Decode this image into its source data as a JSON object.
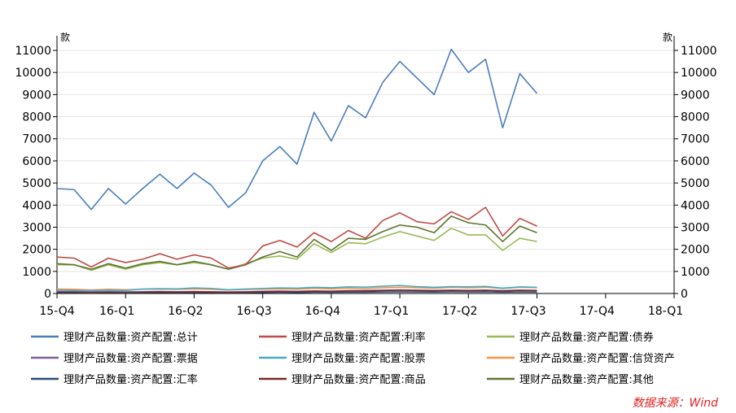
{
  "chart_data": {
    "type": "line",
    "y_unit_left": "款",
    "y_unit_right": "款",
    "ylim": [
      0,
      11000
    ],
    "yticks": [
      0,
      1000,
      2000,
      3000,
      4000,
      5000,
      6000,
      7000,
      8000,
      9000,
      10000,
      11000
    ],
    "ytick_labels": [
      "0",
      "1000",
      "2000",
      "3000",
      "4000",
      "5000",
      "6000",
      "7000",
      "8000",
      "9000",
      "10000",
      "11000"
    ],
    "x_count": 29,
    "x_tick_labels": [
      {
        "label": "15-Q4",
        "index": 0
      },
      {
        "label": "16-Q1",
        "index": 3.5
      },
      {
        "label": "16-Q2",
        "index": 7.5
      },
      {
        "label": "16-Q3",
        "index": 11.5
      },
      {
        "label": "16-Q4",
        "index": 15.5
      },
      {
        "label": "17-Q1",
        "index": 19.5
      },
      {
        "label": "17-Q2",
        "index": 23.5
      },
      {
        "label": "17-Q3",
        "index": 27.5
      },
      {
        "label": "17-Q4",
        "index": 31.5
      },
      {
        "label": "18-Q1",
        "index": 35.5
      }
    ],
    "series": [
      {
        "name": "理财产品数量:资产配置:总计",
        "color": "#4a7ebb",
        "values": [
          4750,
          4700,
          3800,
          4750,
          4050,
          4750,
          5400,
          4750,
          5450,
          4900,
          3900,
          4550,
          6000,
          6650,
          5850,
          8200,
          6900,
          8500,
          7950,
          9550,
          10500,
          9750,
          9000,
          11050,
          10000,
          10600,
          7500,
          9950,
          9050
        ]
      },
      {
        "name": "理财产品数量:资产配置:利率",
        "color": "#be4b48",
        "values": [
          1650,
          1600,
          1200,
          1600,
          1400,
          1550,
          1800,
          1550,
          1750,
          1600,
          1150,
          1300,
          2150,
          2400,
          2100,
          2750,
          2350,
          2850,
          2500,
          3300,
          3650,
          3250,
          3150,
          3700,
          3350,
          3900,
          2600,
          3400,
          3050
        ]
      },
      {
        "name": "理财产品数量:资产配置:债券",
        "color": "#98b954",
        "values": [
          1300,
          1300,
          1050,
          1300,
          1100,
          1300,
          1400,
          1300,
          1400,
          1300,
          1100,
          1350,
          1600,
          1700,
          1550,
          2250,
          1850,
          2300,
          2250,
          2550,
          2800,
          2600,
          2400,
          2950,
          2650,
          2650,
          1950,
          2500,
          2350
        ]
      },
      {
        "name": "理财产品数量:资产配置:票据",
        "color": "#7d60a0",
        "values": [
          80,
          80,
          70,
          80,
          70,
          80,
          90,
          80,
          90,
          80,
          70,
          80,
          100,
          110,
          100,
          120,
          110,
          130,
          140,
          150,
          160,
          150,
          140,
          150,
          140,
          150,
          130,
          150,
          140
        ]
      },
      {
        "name": "理财产品数量:资产配置:股票",
        "color": "#46aac5",
        "values": [
          150,
          140,
          130,
          150,
          140,
          200,
          220,
          210,
          250,
          230,
          170,
          200,
          230,
          250,
          240,
          280,
          260,
          300,
          290,
          330,
          360,
          310,
          280,
          310,
          300,
          320,
          240,
          300,
          280
        ]
      },
      {
        "name": "理财产品数量:资产配置:信贷资产",
        "color": "#f79646",
        "values": [
          200,
          190,
          160,
          190,
          170,
          190,
          200,
          190,
          210,
          190,
          160,
          180,
          200,
          210,
          200,
          230,
          210,
          240,
          230,
          260,
          280,
          260,
          240,
          280,
          260,
          280,
          230,
          280,
          270
        ]
      },
      {
        "name": "理财产品数量:资产配置:汇率",
        "color": "#2c4d75",
        "values": [
          40,
          40,
          30,
          40,
          35,
          40,
          45,
          40,
          45,
          40,
          35,
          40,
          50,
          55,
          50,
          60,
          55,
          60,
          60,
          70,
          75,
          70,
          65,
          75,
          70,
          75,
          60,
          70,
          65
        ]
      },
      {
        "name": "理财产品数量:资产配置:商品",
        "color": "#772c2a",
        "values": [
          60,
          60,
          50,
          60,
          55,
          60,
          70,
          60,
          70,
          60,
          50,
          60,
          80,
          90,
          80,
          100,
          90,
          110,
          110,
          130,
          150,
          130,
          120,
          140,
          130,
          140,
          110,
          140,
          130
        ]
      },
      {
        "name": "理财产品数量:资产配置:其他",
        "color": "#5f7530",
        "values": [
          1350,
          1300,
          1100,
          1350,
          1150,
          1350,
          1450,
          1300,
          1450,
          1300,
          1100,
          1300,
          1650,
          1900,
          1650,
          2450,
          1950,
          2500,
          2450,
          2800,
          3100,
          3000,
          2750,
          3500,
          3200,
          3100,
          2350,
          3050,
          2750
        ]
      }
    ],
    "legend_position": "bottom",
    "grid": true
  },
  "source_label": "数据来源：Wind"
}
